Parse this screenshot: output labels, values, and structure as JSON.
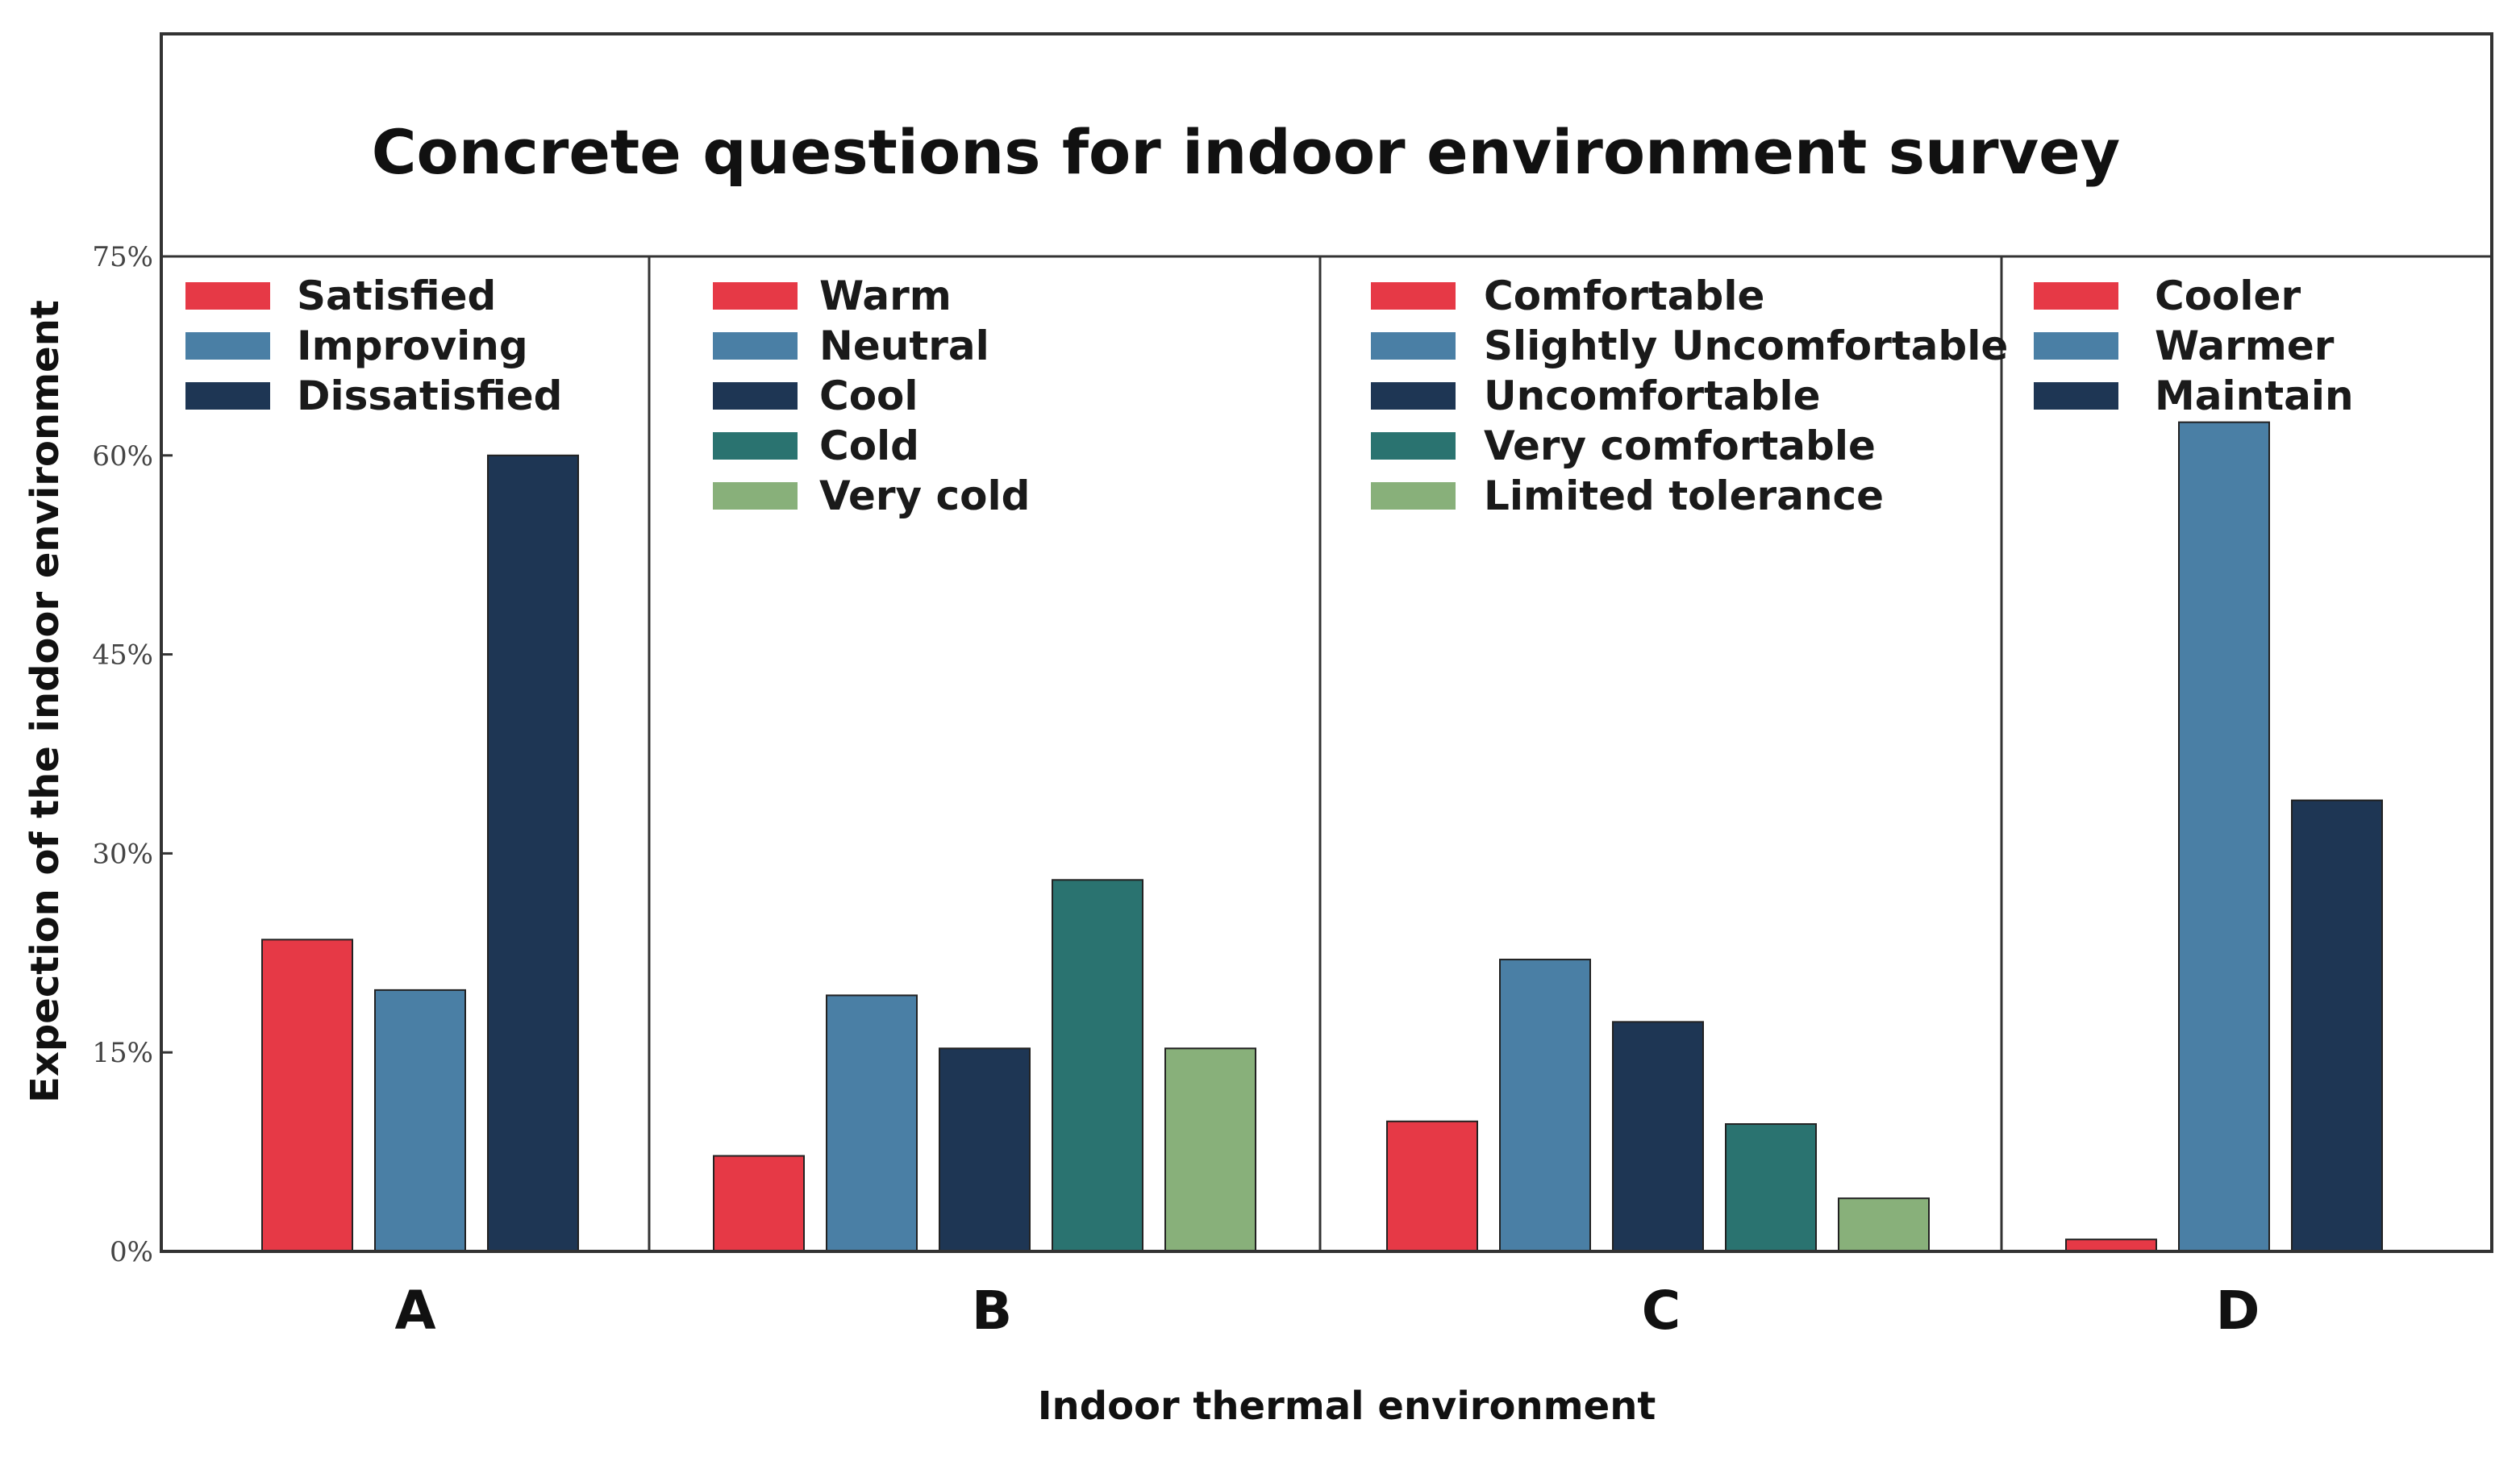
{
  "chart_data": {
    "type": "bar",
    "title": "Concrete questions for indoor environment survey",
    "xlabel": "Indoor  thermal  environment",
    "ylabel": "Expection of the indoor environment",
    "ylim": [
      0,
      75
    ],
    "yticks": [
      0,
      15,
      30,
      45,
      60,
      75
    ],
    "ytick_labels": [
      "0%",
      "15%",
      "30%",
      "45%",
      "60%",
      "75%"
    ],
    "grid": false,
    "legend_position": "top-left of each panel",
    "groups": [
      {
        "name": "A",
        "series": [
          {
            "name": "Satisfied",
            "value": 23.5,
            "color": "#e63946"
          },
          {
            "name": "Improving",
            "value": 19.7,
            "color": "#4a7fa5"
          },
          {
            "name": "Dissatisfied",
            "value": 60.0,
            "color": "#1e3654"
          }
        ]
      },
      {
        "name": "B",
        "series": [
          {
            "name": "Warm",
            "value": 7.2,
            "color": "#e63946"
          },
          {
            "name": "Neutral",
            "value": 19.3,
            "color": "#4a7fa5"
          },
          {
            "name": "Cool",
            "value": 15.3,
            "color": "#1e3654"
          },
          {
            "name": "Cold",
            "value": 28.0,
            "color": "#2a7370"
          },
          {
            "name": "Very cold",
            "value": 15.3,
            "color": "#88b07a"
          }
        ]
      },
      {
        "name": "C",
        "series": [
          {
            "name": "Comfortable",
            "value": 9.8,
            "color": "#e63946"
          },
          {
            "name": "Slightly Uncomfortable",
            "value": 22.0,
            "color": "#4a7fa5"
          },
          {
            "name": "Uncomfortable",
            "value": 17.3,
            "color": "#1e3654"
          },
          {
            "name": "Very comfortable",
            "value": 9.6,
            "color": "#2a7370"
          },
          {
            "name": "Limited tolerance",
            "value": 4.0,
            "color": "#88b07a"
          }
        ]
      },
      {
        "name": "D",
        "series": [
          {
            "name": "Cooler",
            "value": 0.9,
            "color": "#e63946"
          },
          {
            "name": "Warmer",
            "value": 62.5,
            "color": "#4a7fa5"
          },
          {
            "name": "Maintain",
            "value": 34.0,
            "color": "#1e3654"
          }
        ]
      }
    ]
  }
}
